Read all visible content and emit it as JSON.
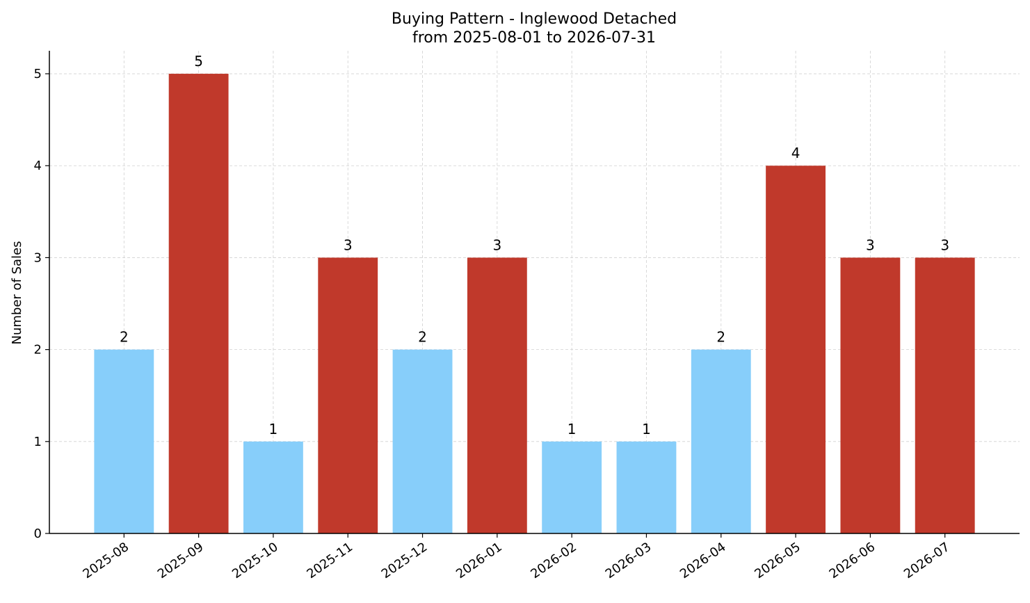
{
  "chart_data": {
    "type": "bar",
    "title": "Buying Pattern - Inglewood Detached",
    "subtitle": "from 2025-08-01 to 2026-07-31",
    "xlabel": "",
    "ylabel": "Number of Sales",
    "categories": [
      "2025-08",
      "2025-09",
      "2025-10",
      "2025-11",
      "2025-12",
      "2026-01",
      "2026-02",
      "2026-03",
      "2026-04",
      "2026-05",
      "2026-06",
      "2026-07"
    ],
    "values": [
      2,
      5,
      1,
      3,
      2,
      3,
      1,
      1,
      2,
      4,
      3,
      3
    ],
    "bar_colors": [
      "#87CEFA",
      "#C0392B",
      "#87CEFA",
      "#C0392B",
      "#87CEFA",
      "#C0392B",
      "#87CEFA",
      "#87CEFA",
      "#87CEFA",
      "#C0392B",
      "#C0392B",
      "#C0392B"
    ],
    "ylim": [
      0,
      5.25
    ],
    "yticks": [
      0,
      1,
      2,
      3,
      4,
      5
    ],
    "grid": true,
    "legend": "none",
    "colors": {
      "low": "#87CEFA",
      "high": "#C0392B",
      "grid": "#d0d0d0",
      "axis": "#000000"
    }
  }
}
